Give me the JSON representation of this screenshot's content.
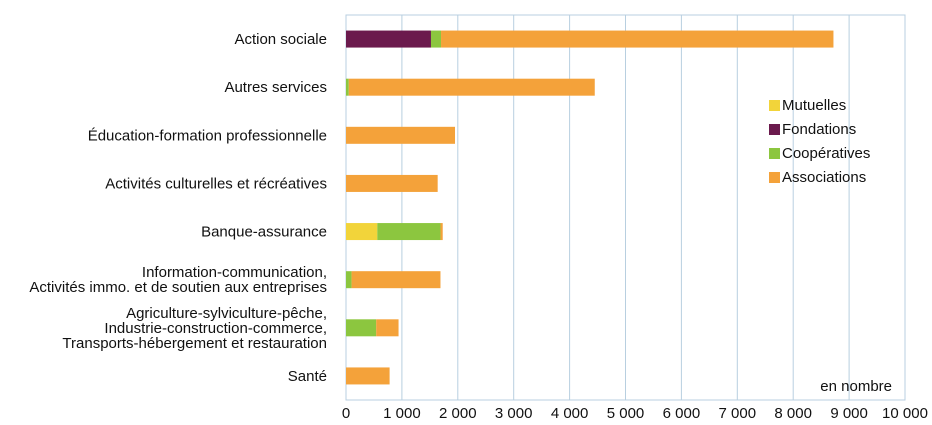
{
  "chart_data": {
    "type": "bar",
    "orientation": "horizontal",
    "stacked": true,
    "categories": [
      [
        "Action sociale"
      ],
      [
        "Autres services"
      ],
      [
        "Éducation-formation professionnelle"
      ],
      [
        "Activités culturelles et récréatives"
      ],
      [
        "Banque-assurance"
      ],
      [
        "Information-communication,",
        "Activités immo. et de soutien aux entreprises"
      ],
      [
        "Agriculture-sylviculture-pêche,",
        "Industrie-construction-commerce,",
        "Transports-hébergement et restauration"
      ],
      [
        "Santé"
      ]
    ],
    "series": [
      {
        "name": "Mutuelles",
        "color": "#f2d43a",
        "values": [
          0,
          0,
          0,
          0,
          560,
          0,
          0,
          0
        ]
      },
      {
        "name": "Fondations",
        "color": "#6b1a4d",
        "values": [
          1520,
          0,
          0,
          0,
          0,
          0,
          0,
          0
        ]
      },
      {
        "name": "Coopératives",
        "color": "#8cc63f",
        "values": [
          180,
          50,
          0,
          0,
          1130,
          100,
          540,
          0
        ]
      },
      {
        "name": "Associations",
        "color": "#f4a23a",
        "values": [
          7020,
          4400,
          1950,
          1640,
          40,
          1590,
          400,
          780
        ]
      }
    ],
    "legend_order": [
      "Mutuelles",
      "Fondations",
      "Coopératives",
      "Associations"
    ],
    "legend_position": "right",
    "xlim": [
      0,
      10000
    ],
    "x_ticks": [
      "0",
      "1 000",
      "2 000",
      "3 000",
      "4 000",
      "5 000",
      "6 000",
      "7 000",
      "8 000",
      "9 000",
      "10 000"
    ],
    "unit_label": "en nombre",
    "grid": "vertical",
    "colors": {
      "grid": "#b8cfe0",
      "frame": "#b8cfe0"
    }
  }
}
